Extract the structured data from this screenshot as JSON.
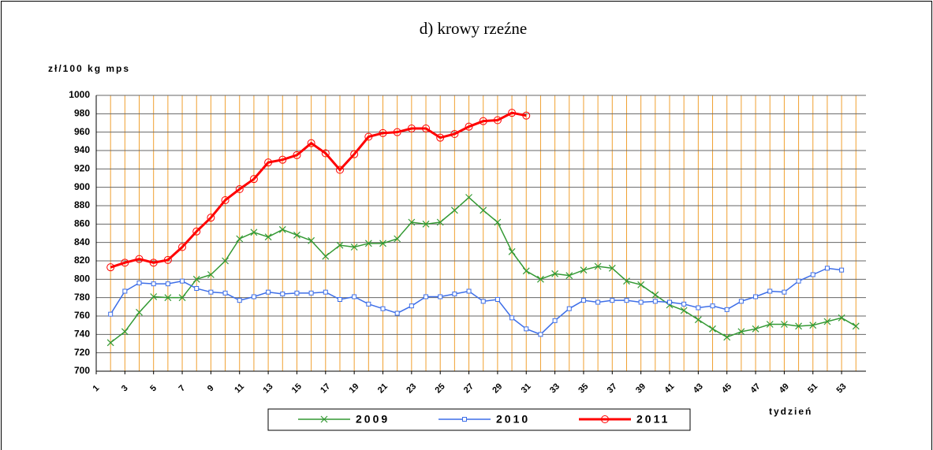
{
  "chart_data": {
    "type": "line",
    "title": "d) krowy rzeźne",
    "y_label": "zł/100 kg mps",
    "x_label": "tydzień",
    "x": [
      1,
      2,
      3,
      4,
      5,
      6,
      7,
      8,
      9,
      10,
      11,
      12,
      13,
      14,
      15,
      16,
      17,
      18,
      19,
      20,
      21,
      22,
      23,
      24,
      25,
      26,
      27,
      28,
      29,
      30,
      31,
      32,
      33,
      34,
      35,
      36,
      37,
      38,
      39,
      40,
      41,
      42,
      43,
      44,
      45,
      46,
      47,
      48,
      49,
      50,
      51,
      52,
      53,
      54
    ],
    "xlim": [
      1,
      54.7
    ],
    "xticks": [
      1,
      3,
      5,
      7,
      9,
      11,
      13,
      15,
      17,
      19,
      21,
      23,
      25,
      27,
      29,
      31,
      33,
      35,
      37,
      39,
      41,
      43,
      45,
      47,
      49,
      51,
      53
    ],
    "ylim": [
      700,
      1000
    ],
    "yticks": [
      700,
      720,
      740,
      760,
      780,
      800,
      820,
      840,
      860,
      880,
      900,
      920,
      940,
      960,
      980,
      1000
    ],
    "grid": true,
    "series": [
      {
        "name": "2009",
        "color": "#339933",
        "marker": "x",
        "values": [
          null,
          731,
          743,
          764,
          781,
          780,
          780,
          800,
          805,
          820,
          844,
          851,
          846,
          854,
          848,
          842,
          825,
          837,
          835,
          839,
          839,
          844,
          862,
          860,
          862,
          875,
          889,
          875,
          862,
          830,
          809,
          800,
          806,
          804,
          810,
          814,
          812,
          798,
          794,
          783,
          772,
          766,
          756,
          746,
          737,
          743,
          746,
          751,
          751,
          749,
          750,
          754,
          758,
          749
        ]
      },
      {
        "name": "2010",
        "color": "#3d6ee8",
        "marker": "square",
        "values": [
          null,
          762,
          787,
          796,
          795,
          795,
          798,
          790,
          786,
          785,
          777,
          781,
          786,
          784,
          785,
          785,
          786,
          778,
          781,
          773,
          768,
          763,
          771,
          781,
          781,
          784,
          787,
          776,
          778,
          758,
          746,
          740,
          755,
          768,
          777,
          775,
          777,
          777,
          775,
          776,
          775,
          773,
          769,
          771,
          767,
          776,
          781,
          787,
          786,
          798,
          805,
          812,
          810,
          null
        ]
      },
      {
        "name": "2011",
        "color": "#ff0000",
        "marker": "circle",
        "values": [
          null,
          813,
          818,
          822,
          818,
          821,
          835,
          852,
          867,
          886,
          898,
          909,
          927,
          930,
          935,
          948,
          937,
          919,
          936,
          955,
          959,
          960,
          964,
          964,
          954,
          958,
          966,
          972,
          973,
          981,
          978,
          null,
          null,
          null,
          null,
          null,
          null,
          null,
          null,
          null,
          null,
          null,
          null,
          null,
          null,
          null,
          null,
          null,
          null,
          null,
          null,
          null,
          null,
          null
        ]
      }
    ]
  }
}
